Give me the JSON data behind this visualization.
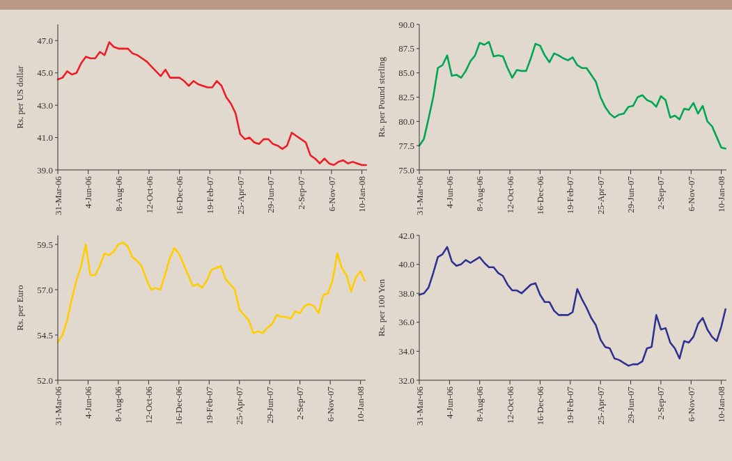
{
  "chart_data": [
    {
      "type": "line",
      "ylabel": "Rs. per US dollar",
      "xlim": [
        "2006-03-31",
        "2008-01-21"
      ],
      "ylim": [
        39,
        48
      ],
      "yticks": [
        {
          "value": 39,
          "label": "39.0"
        },
        {
          "value": 41,
          "label": "41.0"
        },
        {
          "value": 43,
          "label": "43.0"
        },
        {
          "value": 45,
          "label": "45.0"
        },
        {
          "value": 47,
          "label": "47.0"
        }
      ],
      "xticks": [
        {
          "value": "2006-03-31",
          "label": "31-Mar-06"
        },
        {
          "value": "2006-06-04",
          "label": "4-Jun-06"
        },
        {
          "value": "2006-08-08",
          "label": "8-Aug-06"
        },
        {
          "value": "2006-10-12",
          "label": "12-Oct-06"
        },
        {
          "value": "2006-12-16",
          "label": "16-Dec-06"
        },
        {
          "value": "2007-02-19",
          "label": "19-Feb-07"
        },
        {
          "value": "2007-04-25",
          "label": "25-Apr-07"
        },
        {
          "value": "2007-06-29",
          "label": "29-Jun-07"
        },
        {
          "value": "2007-09-02",
          "label": "2-Sep-07"
        },
        {
          "value": "2007-11-06",
          "label": "6-Nov-07"
        },
        {
          "value": "2008-01-10",
          "label": "10-Jan-08"
        }
      ],
      "x": [
        "2006-03-31",
        "2006-04-10",
        "2006-04-20",
        "2006-04-30",
        "2006-05-10",
        "2006-05-20",
        "2006-05-30",
        "2006-06-09",
        "2006-06-19",
        "2006-06-29",
        "2006-07-09",
        "2006-07-19",
        "2006-07-29",
        "2006-08-08",
        "2006-08-18",
        "2006-08-28",
        "2006-09-07",
        "2006-09-17",
        "2006-09-27",
        "2006-10-07",
        "2006-10-17",
        "2006-10-27",
        "2006-11-06",
        "2006-11-16",
        "2006-11-26",
        "2006-12-06",
        "2006-12-16",
        "2006-12-26",
        "2007-01-05",
        "2007-01-15",
        "2007-01-25",
        "2007-02-04",
        "2007-02-14",
        "2007-02-24",
        "2007-03-06",
        "2007-03-16",
        "2007-03-26",
        "2007-04-05",
        "2007-04-15",
        "2007-04-25",
        "2007-05-05",
        "2007-05-15",
        "2007-05-25",
        "2007-06-04",
        "2007-06-14",
        "2007-06-24",
        "2007-07-04",
        "2007-07-14",
        "2007-07-24",
        "2007-08-03",
        "2007-08-13",
        "2007-08-23",
        "2007-09-02",
        "2007-09-12",
        "2007-09-22",
        "2007-10-02",
        "2007-10-12",
        "2007-10-22",
        "2007-11-01",
        "2007-11-11",
        "2007-11-21",
        "2007-12-01",
        "2007-12-11",
        "2007-12-21",
        "2007-12-31",
        "2008-01-10",
        "2008-01-19"
      ],
      "series": [
        {
          "color": "#ee1c25",
          "values": [
            44.6,
            44.7,
            45.1,
            44.9,
            45.0,
            45.6,
            46.0,
            45.9,
            45.9,
            46.3,
            46.1,
            46.9,
            46.6,
            46.5,
            46.5,
            46.5,
            46.2,
            46.1,
            45.9,
            45.7,
            45.4,
            45.1,
            44.8,
            45.2,
            44.7,
            44.7,
            44.7,
            44.5,
            44.2,
            44.5,
            44.3,
            44.2,
            44.1,
            44.1,
            44.5,
            44.2,
            43.5,
            43.1,
            42.5,
            41.2,
            40.9,
            41.0,
            40.7,
            40.6,
            40.9,
            40.9,
            40.6,
            40.5,
            40.3,
            40.5,
            41.3,
            41.1,
            40.9,
            40.7,
            39.9,
            39.7,
            39.4,
            39.7,
            39.4,
            39.3,
            39.5,
            39.6,
            39.4,
            39.5,
            39.4,
            39.3,
            39.3
          ]
        }
      ]
    },
    {
      "type": "line",
      "ylabel": "Rs. per Pound sterling",
      "xlim": [
        "2006-03-31",
        "2008-01-21"
      ],
      "ylim": [
        75,
        90
      ],
      "yticks": [
        {
          "value": 75,
          "label": "75.0"
        },
        {
          "value": 77.5,
          "label": "77.5"
        },
        {
          "value": 80,
          "label": "80.0"
        },
        {
          "value": 82.5,
          "label": "82.5"
        },
        {
          "value": 85,
          "label": "85.0"
        },
        {
          "value": 87.5,
          "label": "87.5"
        },
        {
          "value": 90,
          "label": "90.0"
        }
      ],
      "xticks": [
        {
          "value": "2006-03-31",
          "label": "31-Mar-06"
        },
        {
          "value": "2006-06-04",
          "label": "4-Jun-06"
        },
        {
          "value": "2006-08-08",
          "label": "8-Aug-06"
        },
        {
          "value": "2006-10-12",
          "label": "12-Oct-06"
        },
        {
          "value": "2006-12-16",
          "label": "16-Dec-06"
        },
        {
          "value": "2007-02-19",
          "label": "19-Feb-07"
        },
        {
          "value": "2007-04-25",
          "label": "25-Apr-07"
        },
        {
          "value": "2007-06-29",
          "label": "29-Jun-07"
        },
        {
          "value": "2007-09-02",
          "label": "2-Sep-07"
        },
        {
          "value": "2007-11-06",
          "label": "6-Nov-07"
        },
        {
          "value": "2008-01-10",
          "label": "10-Jan-08"
        }
      ],
      "x": [
        "2006-03-31",
        "2006-04-10",
        "2006-04-20",
        "2006-04-30",
        "2006-05-10",
        "2006-05-20",
        "2006-05-30",
        "2006-06-09",
        "2006-06-19",
        "2006-06-29",
        "2006-07-09",
        "2006-07-19",
        "2006-07-29",
        "2006-08-08",
        "2006-08-18",
        "2006-08-28",
        "2006-09-07",
        "2006-09-17",
        "2006-09-27",
        "2006-10-07",
        "2006-10-17",
        "2006-10-27",
        "2006-11-06",
        "2006-11-16",
        "2006-11-26",
        "2006-12-06",
        "2006-12-16",
        "2006-12-26",
        "2007-01-05",
        "2007-01-15",
        "2007-01-25",
        "2007-02-04",
        "2007-02-14",
        "2007-02-24",
        "2007-03-06",
        "2007-03-16",
        "2007-03-26",
        "2007-04-05",
        "2007-04-15",
        "2007-04-25",
        "2007-05-05",
        "2007-05-15",
        "2007-05-25",
        "2007-06-04",
        "2007-06-14",
        "2007-06-24",
        "2007-07-04",
        "2007-07-14",
        "2007-07-24",
        "2007-08-03",
        "2007-08-13",
        "2007-08-23",
        "2007-09-02",
        "2007-09-12",
        "2007-09-22",
        "2007-10-02",
        "2007-10-12",
        "2007-10-22",
        "2007-11-01",
        "2007-11-11",
        "2007-11-21",
        "2007-12-01",
        "2007-12-11",
        "2007-12-21",
        "2007-12-31",
        "2008-01-10",
        "2008-01-19"
      ],
      "series": [
        {
          "color": "#00a651",
          "values": [
            77.5,
            78.2,
            80.3,
            82.5,
            85.5,
            85.8,
            86.8,
            84.7,
            84.8,
            84.5,
            85.2,
            86.2,
            86.8,
            88.1,
            87.9,
            88.2,
            86.7,
            86.8,
            86.7,
            85.5,
            84.5,
            85.3,
            85.2,
            85.2,
            86.5,
            88.0,
            87.8,
            86.8,
            86.1,
            87.0,
            86.8,
            86.5,
            86.3,
            86.6,
            85.8,
            85.5,
            85.5,
            84.8,
            84.1,
            82.5,
            81.5,
            80.8,
            80.4,
            80.7,
            80.8,
            81.5,
            81.6,
            82.5,
            82.7,
            82.2,
            82.0,
            81.5,
            82.6,
            82.2,
            80.4,
            80.6,
            80.2,
            81.3,
            81.2,
            81.9,
            80.8,
            81.6,
            80.0,
            79.5,
            78.4,
            77.3,
            77.2
          ]
        }
      ]
    },
    {
      "type": "line",
      "ylabel": "Rs. per Euro",
      "xlim": [
        "2006-03-31",
        "2008-01-21"
      ],
      "ylim": [
        52,
        60
      ],
      "yticks": [
        {
          "value": 52,
          "label": "52.0"
        },
        {
          "value": 54.5,
          "label": "54.5"
        },
        {
          "value": 57,
          "label": "57.0"
        },
        {
          "value": 59.5,
          "label": "59.5"
        }
      ],
      "xticks": [
        {
          "value": "2006-03-31",
          "label": "31-Mar-06"
        },
        {
          "value": "2006-06-04",
          "label": "4-Jun-06"
        },
        {
          "value": "2006-08-08",
          "label": "8-Aug-06"
        },
        {
          "value": "2006-10-12",
          "label": "12-Oct-06"
        },
        {
          "value": "2006-12-16",
          "label": "16-Dec-06"
        },
        {
          "value": "2007-02-19",
          "label": "19-Feb-07"
        },
        {
          "value": "2007-04-25",
          "label": "25-Apr-07"
        },
        {
          "value": "2007-06-29",
          "label": "29-Jun-07"
        },
        {
          "value": "2007-09-02",
          "label": "2-Sep-07"
        },
        {
          "value": "2007-11-06",
          "label": "6-Nov-07"
        },
        {
          "value": "2008-01-10",
          "label": "10-Jan-08"
        }
      ],
      "x": [
        "2006-03-31",
        "2006-04-10",
        "2006-04-20",
        "2006-04-30",
        "2006-05-10",
        "2006-05-20",
        "2006-05-30",
        "2006-06-09",
        "2006-06-19",
        "2006-06-29",
        "2006-07-09",
        "2006-07-19",
        "2006-07-29",
        "2006-08-08",
        "2006-08-18",
        "2006-08-28",
        "2006-09-07",
        "2006-09-17",
        "2006-09-27",
        "2006-10-07",
        "2006-10-17",
        "2006-10-27",
        "2006-11-06",
        "2006-11-16",
        "2006-11-26",
        "2006-12-06",
        "2006-12-16",
        "2006-12-26",
        "2007-01-05",
        "2007-01-15",
        "2007-01-25",
        "2007-02-04",
        "2007-02-14",
        "2007-02-24",
        "2007-03-06",
        "2007-03-16",
        "2007-03-26",
        "2007-04-05",
        "2007-04-15",
        "2007-04-25",
        "2007-05-05",
        "2007-05-15",
        "2007-05-25",
        "2007-06-04",
        "2007-06-14",
        "2007-06-24",
        "2007-07-04",
        "2007-07-14",
        "2007-07-24",
        "2007-08-03",
        "2007-08-13",
        "2007-08-23",
        "2007-09-02",
        "2007-09-12",
        "2007-09-22",
        "2007-10-02",
        "2007-10-12",
        "2007-10-22",
        "2007-11-01",
        "2007-11-11",
        "2007-11-21",
        "2007-12-01",
        "2007-12-11",
        "2007-12-21",
        "2007-12-31",
        "2008-01-10",
        "2008-01-19"
      ],
      "series": [
        {
          "color": "#ffcc00",
          "values": [
            54.1,
            54.5,
            55.3,
            56.5,
            57.5,
            58.3,
            59.5,
            57.8,
            57.8,
            58.3,
            59.0,
            58.9,
            59.1,
            59.5,
            59.6,
            59.4,
            58.8,
            58.6,
            58.3,
            57.6,
            57.0,
            57.1,
            57.0,
            57.8,
            58.7,
            59.3,
            59.0,
            58.4,
            57.8,
            57.2,
            57.3,
            57.1,
            57.5,
            58.1,
            58.2,
            58.3,
            57.6,
            57.3,
            57.0,
            55.9,
            55.6,
            55.3,
            54.6,
            54.7,
            54.6,
            54.9,
            55.1,
            55.6,
            55.5,
            55.5,
            55.4,
            55.8,
            55.7,
            56.1,
            56.2,
            56.1,
            55.7,
            56.7,
            56.8,
            57.5,
            59.0,
            58.2,
            57.8,
            56.9,
            57.7,
            58.0,
            57.5
          ]
        }
      ]
    },
    {
      "type": "line",
      "ylabel": "Rs. per 100 Yen",
      "xlim": [
        "2006-03-31",
        "2008-01-21"
      ],
      "ylim": [
        32,
        42
      ],
      "yticks": [
        {
          "value": 32,
          "label": "32.0"
        },
        {
          "value": 34,
          "label": "34.0"
        },
        {
          "value": 36,
          "label": "36.0"
        },
        {
          "value": 38,
          "label": "38.0"
        },
        {
          "value": 40,
          "label": "40.0"
        },
        {
          "value": 42,
          "label": "42.0"
        }
      ],
      "xticks": [
        {
          "value": "2006-03-31",
          "label": "31-Mar-06"
        },
        {
          "value": "2006-06-04",
          "label": "4-Jun-06"
        },
        {
          "value": "2006-08-08",
          "label": "8-Aug-06"
        },
        {
          "value": "2006-10-12",
          "label": "12-Oct-06"
        },
        {
          "value": "2006-12-16",
          "label": "16-Dec-06"
        },
        {
          "value": "2007-02-19",
          "label": "19-Feb-07"
        },
        {
          "value": "2007-04-25",
          "label": "25-Apr-07"
        },
        {
          "value": "2007-06-29",
          "label": "29-Jun-07"
        },
        {
          "value": "2007-09-02",
          "label": "2-Sep-07"
        },
        {
          "value": "2007-11-06",
          "label": "6-Nov-07"
        },
        {
          "value": "2008-01-10",
          "label": "10-Jan-08"
        }
      ],
      "x": [
        "2006-03-31",
        "2006-04-10",
        "2006-04-20",
        "2006-04-30",
        "2006-05-10",
        "2006-05-20",
        "2006-05-30",
        "2006-06-09",
        "2006-06-19",
        "2006-06-29",
        "2006-07-09",
        "2006-07-19",
        "2006-07-29",
        "2006-08-08",
        "2006-08-18",
        "2006-08-28",
        "2006-09-07",
        "2006-09-17",
        "2006-09-27",
        "2006-10-07",
        "2006-10-17",
        "2006-10-27",
        "2006-11-06",
        "2006-11-16",
        "2006-11-26",
        "2006-12-06",
        "2006-12-16",
        "2006-12-26",
        "2007-01-05",
        "2007-01-15",
        "2007-01-25",
        "2007-02-04",
        "2007-02-14",
        "2007-02-24",
        "2007-03-06",
        "2007-03-16",
        "2007-03-26",
        "2007-04-05",
        "2007-04-15",
        "2007-04-25",
        "2007-05-05",
        "2007-05-15",
        "2007-05-25",
        "2007-06-04",
        "2007-06-14",
        "2007-06-24",
        "2007-07-04",
        "2007-07-14",
        "2007-07-24",
        "2007-08-03",
        "2007-08-13",
        "2007-08-23",
        "2007-09-02",
        "2007-09-12",
        "2007-09-22",
        "2007-10-02",
        "2007-10-12",
        "2007-10-22",
        "2007-11-01",
        "2007-11-11",
        "2007-11-21",
        "2007-12-01",
        "2007-12-11",
        "2007-12-21",
        "2007-12-31",
        "2008-01-10",
        "2008-01-19"
      ],
      "series": [
        {
          "color": "#2e3192",
          "values": [
            37.9,
            38.0,
            38.4,
            39.4,
            40.5,
            40.7,
            41.2,
            40.2,
            39.9,
            40.0,
            40.3,
            40.1,
            40.3,
            40.5,
            40.1,
            39.8,
            39.8,
            39.4,
            39.2,
            38.6,
            38.2,
            38.2,
            38.0,
            38.3,
            38.6,
            38.7,
            37.9,
            37.4,
            37.4,
            36.8,
            36.5,
            36.5,
            36.5,
            36.7,
            38.3,
            37.6,
            37.0,
            36.3,
            35.8,
            34.8,
            34.3,
            34.2,
            33.5,
            33.4,
            33.2,
            33.0,
            33.1,
            33.1,
            33.3,
            34.2,
            34.3,
            36.5,
            35.5,
            35.6,
            34.6,
            34.2,
            33.5,
            34.7,
            34.6,
            35.0,
            35.9,
            36.3,
            35.5,
            35.0,
            34.7,
            35.7,
            36.9
          ]
        }
      ]
    }
  ]
}
